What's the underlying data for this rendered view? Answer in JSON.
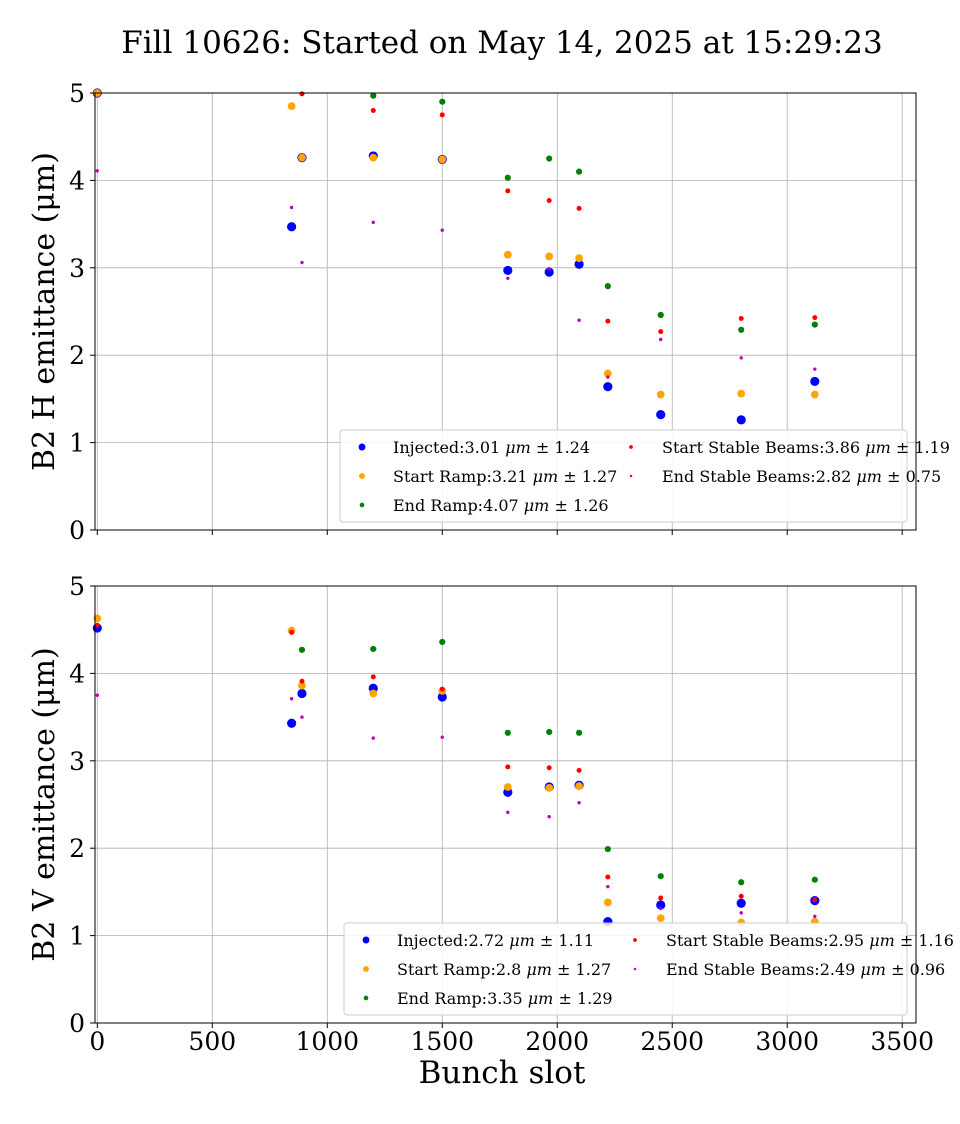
{
  "figure": {
    "title": "Fill 10626: Started on May 14, 2025 at 15:29:23",
    "xlabel": "Bunch slot"
  },
  "chart_data": [
    {
      "type": "scatter",
      "ylabel": "B2 H emittance (μm)",
      "xlim": [
        -10,
        3560
      ],
      "ylim": [
        0,
        5
      ],
      "xticks": [
        0,
        500,
        1000,
        1500,
        2000,
        2500,
        3000,
        3500
      ],
      "yticks": [
        0,
        1,
        2,
        3,
        4,
        5
      ],
      "show_x_tick_labels": false,
      "grid": true,
      "legend_position": "lower-right",
      "series": [
        {
          "name": "Injected",
          "legend": [
            "Injected:3.01 ",
            "μm",
            " ± 1.24"
          ],
          "color": "#0000ff",
          "x": [
            0,
            845,
            890,
            1200,
            1500,
            1785,
            1965,
            2095,
            2220,
            2450,
            2800,
            3120
          ],
          "y": [
            5.0,
            3.47,
            4.26,
            4.28,
            4.24,
            2.97,
            2.95,
            3.04,
            1.64,
            1.32,
            1.26,
            1.7
          ]
        },
        {
          "name": "Start Ramp",
          "legend": [
            "Start Ramp:3.21 ",
            "μm",
            " ± 1.27"
          ],
          "color": "#ffa500",
          "x": [
            0,
            845,
            890,
            1200,
            1500,
            1785,
            1965,
            2095,
            2220,
            2450,
            2800,
            3120
          ],
          "y": [
            5.0,
            4.85,
            4.26,
            4.26,
            4.24,
            3.15,
            3.13,
            3.11,
            1.79,
            1.55,
            1.56,
            1.55
          ]
        },
        {
          "name": "End Ramp",
          "legend": [
            "End Ramp:4.07 ",
            "μm",
            " ± 1.26"
          ],
          "color": "#008000",
          "x": [
            1200,
            1500,
            1785,
            1965,
            2095,
            2220,
            2450,
            2800,
            3120
          ],
          "y": [
            4.97,
            4.9,
            4.03,
            4.25,
            4.1,
            2.79,
            2.46,
            2.29,
            2.35
          ]
        },
        {
          "name": "Start Stable Beams",
          "legend": [
            "Start Stable Beams:3.86 ",
            "μm",
            " ± 1.19"
          ],
          "color": "#ff0000",
          "x": [
            890,
            1200,
            1500,
            1785,
            1965,
            2095,
            2220,
            2450,
            2800,
            3120
          ],
          "y": [
            4.99,
            4.8,
            4.75,
            3.88,
            3.77,
            3.68,
            2.39,
            2.27,
            2.42,
            2.43
          ]
        },
        {
          "name": "End Stable Beams",
          "legend": [
            "End Stable Beams:2.82 ",
            "μm",
            " ± 0.75"
          ],
          "color": "#bf00bf",
          "x": [
            0,
            845,
            890,
            1200,
            1500,
            1785,
            1965,
            2095,
            2220,
            2450,
            2800,
            3120
          ],
          "y": [
            4.11,
            3.69,
            3.06,
            3.52,
            3.43,
            2.88,
            2.99,
            2.4,
            1.75,
            2.18,
            1.97,
            1.84
          ]
        }
      ]
    },
    {
      "type": "scatter",
      "ylabel": "B2 V emittance (μm)",
      "xlim": [
        -10,
        3560
      ],
      "ylim": [
        0,
        5
      ],
      "xticks": [
        0,
        500,
        1000,
        1500,
        2000,
        2500,
        3000,
        3500
      ],
      "yticks": [
        0,
        1,
        2,
        3,
        4,
        5
      ],
      "show_x_tick_labels": true,
      "grid": true,
      "legend_position": "lower-right",
      "series": [
        {
          "name": "Injected",
          "legend": [
            "Injected:2.72 ",
            "μm",
            " ± 1.11"
          ],
          "color": "#0000ff",
          "x": [
            0,
            845,
            890,
            1200,
            1500,
            1785,
            1965,
            2095,
            2220,
            2450,
            2800,
            3120
          ],
          "y": [
            4.52,
            3.43,
            3.77,
            3.83,
            3.73,
            2.64,
            2.7,
            2.72,
            1.16,
            1.35,
            1.37,
            1.4
          ]
        },
        {
          "name": "Start Ramp",
          "legend": [
            "Start Ramp:2.8 ",
            "μm",
            " ± 1.27"
          ],
          "color": "#ffa500",
          "x": [
            0,
            845,
            890,
            1200,
            1500,
            1785,
            1965,
            2095,
            2220,
            2450,
            2800,
            3120
          ],
          "y": [
            4.63,
            4.49,
            3.86,
            3.77,
            3.8,
            2.7,
            2.69,
            2.71,
            1.38,
            1.2,
            1.15,
            1.16
          ]
        },
        {
          "name": "End Ramp",
          "legend": [
            "End Ramp:3.35 ",
            "μm",
            " ± 1.29"
          ],
          "color": "#008000",
          "x": [
            890,
            1200,
            1500,
            1785,
            1965,
            2095,
            2220,
            2450,
            2800,
            3120
          ],
          "y": [
            4.27,
            4.28,
            4.36,
            3.32,
            3.33,
            3.32,
            1.99,
            1.68,
            1.61,
            1.64
          ]
        },
        {
          "name": "Start Stable Beams",
          "legend": [
            "Start Stable Beams:2.95 ",
            "μm",
            " ± 1.16"
          ],
          "color": "#ff0000",
          "x": [
            0,
            845,
            890,
            1200,
            1500,
            1785,
            1965,
            2095,
            2220,
            2450,
            2800,
            3120
          ],
          "y": [
            4.55,
            4.47,
            3.91,
            3.96,
            3.82,
            2.93,
            2.92,
            2.89,
            1.67,
            1.43,
            1.45,
            1.41
          ]
        },
        {
          "name": "End Stable Beams",
          "legend": [
            "End Stable Beams:2.49 ",
            "μm",
            " ± 0.96"
          ],
          "color": "#bf00bf",
          "x": [
            0,
            845,
            890,
            1200,
            1500,
            1785,
            1965,
            2095,
            2220,
            2450,
            2800,
            3120
          ],
          "y": [
            3.75,
            3.71,
            3.5,
            3.26,
            3.27,
            2.41,
            2.36,
            2.52,
            1.56,
            1.31,
            1.26,
            1.22
          ]
        }
      ]
    }
  ]
}
